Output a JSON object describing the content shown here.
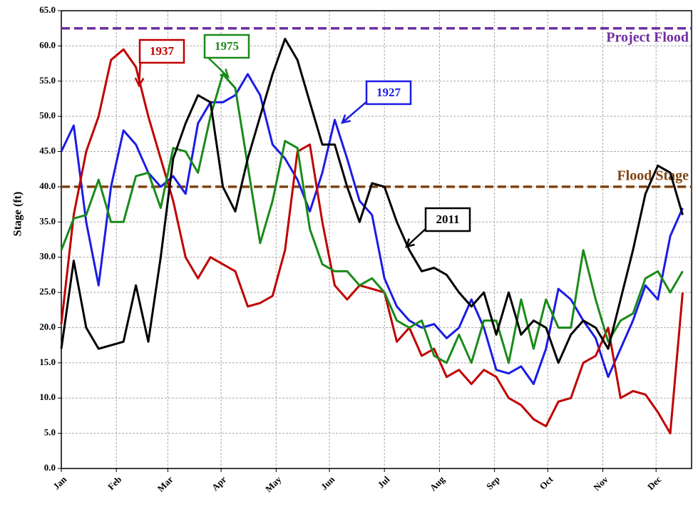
{
  "chart_data": {
    "type": "line",
    "y_label": "Stage (ft)",
    "x": [
      0,
      7,
      14,
      21,
      28,
      35,
      42,
      49,
      56,
      63,
      70,
      77,
      84,
      91,
      98,
      105,
      112,
      119,
      126,
      133,
      140,
      147,
      154,
      161,
      168,
      175,
      182,
      189,
      196,
      203,
      210,
      217,
      224,
      231,
      238,
      245,
      252,
      259,
      266,
      273,
      280,
      287,
      294,
      301,
      308,
      315,
      322,
      329,
      336,
      343,
      350
    ],
    "xlim": [
      0,
      355
    ],
    "xticks": [
      {
        "value": 0,
        "label": "Jan"
      },
      {
        "value": 31,
        "label": "Feb"
      },
      {
        "value": 60,
        "label": "Mar"
      },
      {
        "value": 90,
        "label": "Apr"
      },
      {
        "value": 121,
        "label": "May"
      },
      {
        "value": 151,
        "label": "Jun"
      },
      {
        "value": 182,
        "label": "Jul"
      },
      {
        "value": 213,
        "label": "Aug"
      },
      {
        "value": 244,
        "label": "Sep"
      },
      {
        "value": 274,
        "label": "Oct"
      },
      {
        "value": 305,
        "label": "Nov"
      },
      {
        "value": 335,
        "label": "Dec"
      }
    ],
    "ylim": [
      0,
      65
    ],
    "yticks": [
      {
        "value": 0,
        "label": "0.0"
      },
      {
        "value": 5,
        "label": "5.0"
      },
      {
        "value": 10,
        "label": "10.0"
      },
      {
        "value": 15,
        "label": "15.0"
      },
      {
        "value": 20,
        "label": "20.0"
      },
      {
        "value": 25,
        "label": "25.0"
      },
      {
        "value": 30,
        "label": "30.0"
      },
      {
        "value": 35,
        "label": "35.0"
      },
      {
        "value": 40,
        "label": "40.0"
      },
      {
        "value": 45,
        "label": "45.0"
      },
      {
        "value": 50,
        "label": "50.0"
      },
      {
        "value": 55,
        "label": "55.0"
      },
      {
        "value": 60,
        "label": "60.0"
      },
      {
        "value": 65,
        "label": "65.0"
      }
    ],
    "grid": true,
    "series": [
      {
        "name": "1927",
        "color": "#1c1ce6",
        "values": [
          45,
          48.7,
          35,
          26,
          40,
          48,
          46,
          42,
          40,
          41.5,
          39,
          49,
          52,
          52,
          53,
          56,
          53,
          46,
          44,
          41,
          36.5,
          42,
          49.5,
          44,
          38,
          36,
          27,
          23,
          21,
          20,
          20.5,
          18.5,
          20,
          24,
          20,
          14,
          13.5,
          14.5,
          12,
          17,
          25.5,
          24,
          21,
          18.5,
          13,
          17,
          21,
          26,
          24,
          33,
          37
        ]
      },
      {
        "name": "1937",
        "color": "#c00000",
        "values": [
          20.5,
          36,
          45,
          50,
          58,
          59.5,
          57,
          50,
          44,
          38,
          30,
          27,
          30,
          29,
          28,
          23,
          23.5,
          24.5,
          31,
          45,
          46,
          35,
          26,
          24,
          26,
          25.5,
          25,
          18,
          20,
          16,
          17,
          13,
          14,
          12,
          14,
          13,
          10,
          9,
          7,
          6,
          9.5,
          10,
          15,
          16,
          20,
          10,
          11,
          10.5,
          8,
          5,
          25
        ]
      },
      {
        "name": "1975",
        "color": "#1a8a1a",
        "values": [
          31,
          35.5,
          36,
          41,
          35,
          35,
          41.5,
          42,
          37,
          45.5,
          45,
          42,
          50,
          56,
          54,
          43,
          32,
          38,
          46.5,
          45.5,
          34,
          29,
          28,
          28,
          26,
          27,
          25,
          21,
          20,
          21,
          16,
          15,
          19,
          15,
          21,
          21,
          15,
          24,
          17,
          24,
          20,
          20,
          31,
          24,
          18,
          21,
          22,
          27,
          28,
          25,
          28
        ]
      },
      {
        "name": "2011",
        "color": "#000000",
        "values": [
          17,
          29.5,
          20,
          17,
          17.5,
          18,
          26,
          18,
          30,
          44,
          49,
          53,
          52,
          40,
          36.5,
          44,
          50,
          56,
          61,
          58,
          52,
          46,
          46,
          40,
          35,
          40.5,
          40,
          35,
          31,
          28,
          28.5,
          27.5,
          25,
          23,
          25,
          19,
          25,
          19,
          21,
          20,
          15,
          19,
          21,
          20,
          17,
          24,
          31,
          39,
          43,
          42,
          36
        ]
      }
    ],
    "reference_lines": [
      {
        "name": "Project Flood",
        "value": 62.5,
        "color": "#7030a0"
      },
      {
        "name": "Flood Stage",
        "value": 40,
        "color": "#7f4410"
      }
    ]
  }
}
